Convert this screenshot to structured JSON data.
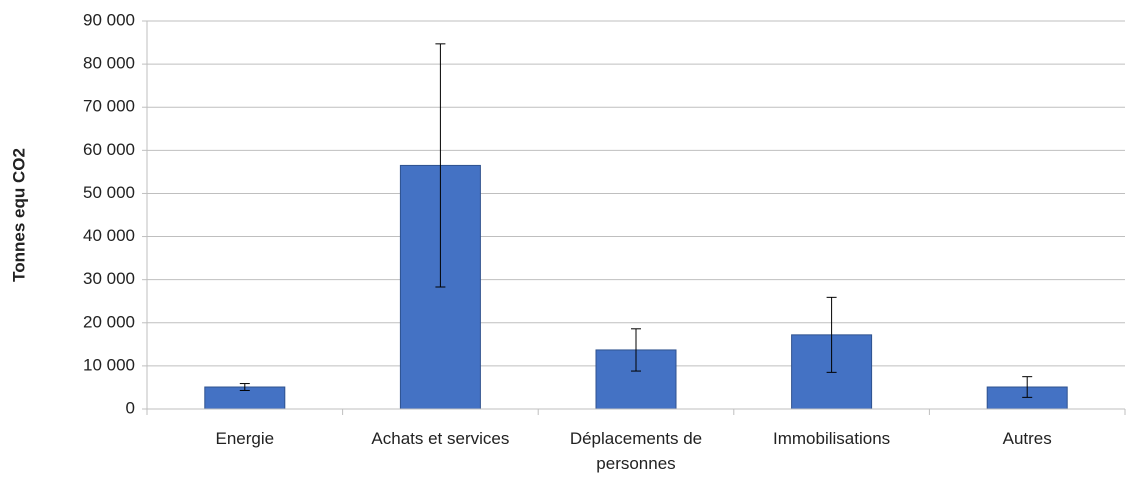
{
  "chart_data": {
    "type": "bar",
    "y_label": "Tonnes equ CO2",
    "categories": [
      "Energie",
      "Achats et services",
      "Déplacements de personnes",
      "Immobilisations",
      "Autres"
    ],
    "values": [
      5100,
      56500,
      13700,
      17200,
      5100
    ],
    "errors": [
      800,
      28200,
      4900,
      8700,
      2400
    ],
    "color": "#4472c4",
    "ylim": [
      0,
      90000
    ],
    "yticks": [
      0,
      {
        "value": 10000,
        "label": "10 000"
      },
      {
        "value": 20000,
        "label": "20 000"
      },
      {
        "value": 30000,
        "label": "30 000"
      },
      {
        "value": 40000,
        "label": "40 000"
      },
      {
        "value": 50000,
        "label": "50 000"
      },
      {
        "value": 60000,
        "label": "60 000"
      },
      {
        "value": 70000,
        "label": "70 000"
      },
      {
        "value": 80000,
        "label": "80 000"
      },
      {
        "value": 90000,
        "label": "90 000"
      }
    ],
    "grid": true
  }
}
